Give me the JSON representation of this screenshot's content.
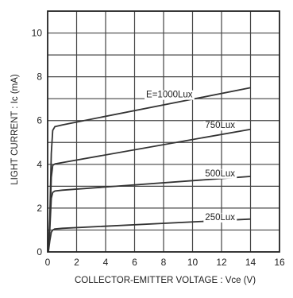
{
  "chart_data": {
    "type": "line",
    "title": "",
    "xlabel": "COLLECTOR-EMITTER  VOLTAGE : Vce (V)",
    "ylabel": "LIGHT  CURRENT : Ic (mA)",
    "xlim": [
      0,
      16
    ],
    "ylim": [
      0,
      11
    ],
    "xticks": [
      0,
      2,
      4,
      6,
      8,
      10,
      12,
      14,
      16
    ],
    "yticks": [
      0,
      2,
      4,
      6,
      8,
      10
    ],
    "grid": true,
    "legend": "none",
    "line_color": "#333333",
    "grid_color": "#444444",
    "series": [
      {
        "name": "E=1000Lux",
        "label_at": [
          8.4,
          7.2
        ],
        "points": [
          [
            0.05,
            0
          ],
          [
            0.15,
            1.5
          ],
          [
            0.25,
            4.5
          ],
          [
            0.35,
            5.55
          ],
          [
            0.5,
            5.72
          ],
          [
            1.0,
            5.8
          ],
          [
            14,
            7.5
          ]
        ]
      },
      {
        "name": "750Lux",
        "label_at": [
          11.9,
          5.8
        ],
        "points": [
          [
            0.05,
            0
          ],
          [
            0.15,
            1.2
          ],
          [
            0.25,
            3.4
          ],
          [
            0.35,
            3.95
          ],
          [
            0.5,
            4.02
          ],
          [
            1.0,
            4.08
          ],
          [
            14,
            5.6
          ]
        ]
      },
      {
        "name": "500Lux",
        "label_at": [
          11.9,
          3.6
        ],
        "points": [
          [
            0.05,
            0
          ],
          [
            0.15,
            1.0
          ],
          [
            0.25,
            2.45
          ],
          [
            0.35,
            2.72
          ],
          [
            0.5,
            2.78
          ],
          [
            1.0,
            2.82
          ],
          [
            14,
            3.45
          ]
        ]
      },
      {
        "name": "250Lux",
        "label_at": [
          11.9,
          1.6
        ],
        "points": [
          [
            0.05,
            0
          ],
          [
            0.15,
            0.5
          ],
          [
            0.25,
            0.9
          ],
          [
            0.35,
            1.0
          ],
          [
            0.5,
            1.05
          ],
          [
            1.0,
            1.08
          ],
          [
            14,
            1.5
          ]
        ]
      }
    ]
  }
}
